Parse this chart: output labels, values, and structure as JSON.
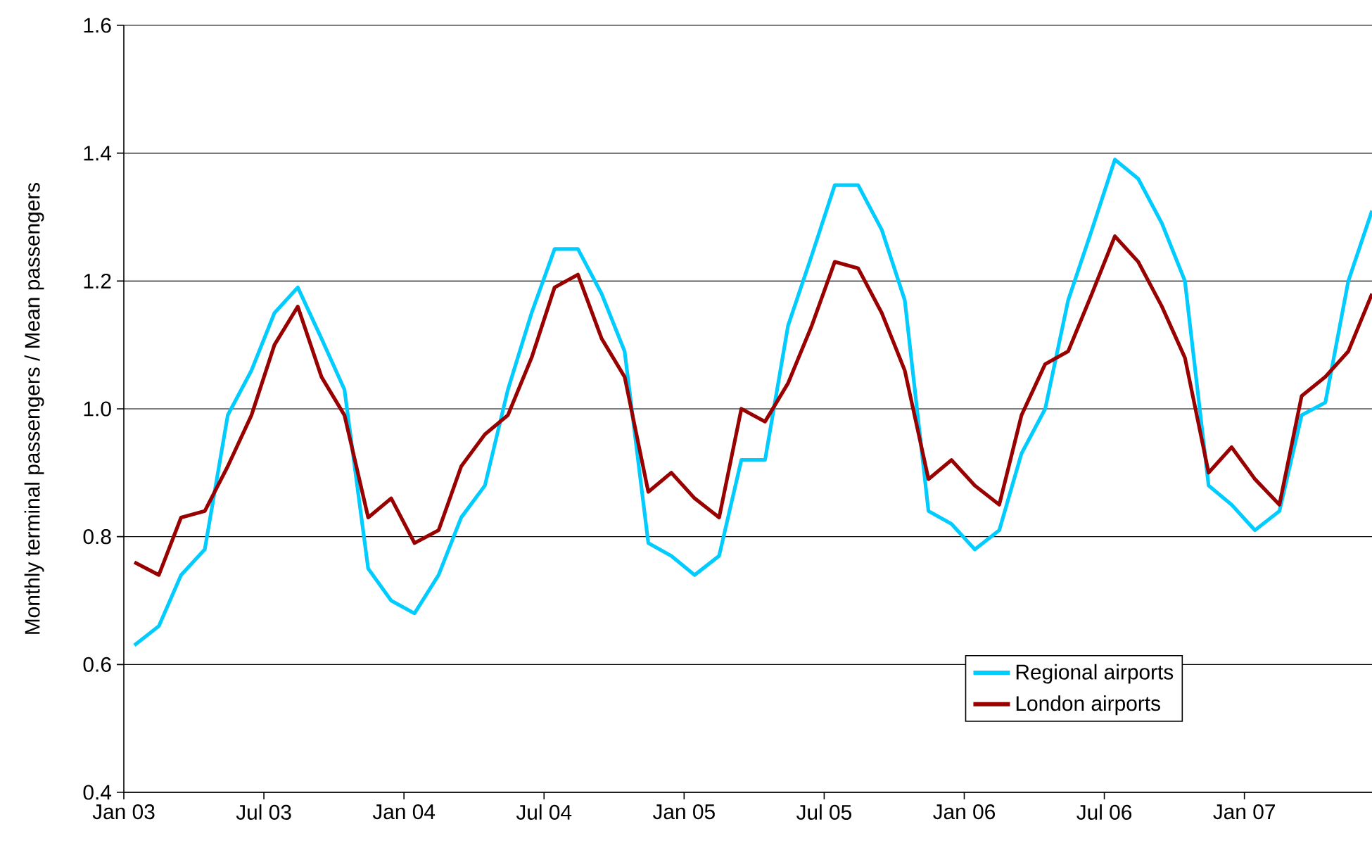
{
  "chart_data": {
    "type": "line",
    "ylabel": "Monthly terminal passengers / Mean passengers",
    "x": [
      "2003-01-15",
      "2003-02-15",
      "2003-03-15",
      "2003-04-15",
      "2003-05-15",
      "2003-06-15",
      "2003-07-15",
      "2003-08-15",
      "2003-09-15",
      "2003-10-15",
      "2003-11-15",
      "2003-12-15",
      "2004-01-15",
      "2004-02-15",
      "2004-03-15",
      "2004-04-15",
      "2004-05-15",
      "2004-06-15",
      "2004-07-15",
      "2004-08-15",
      "2004-09-15",
      "2004-10-15",
      "2004-11-15",
      "2004-12-15",
      "2005-01-15",
      "2005-02-15",
      "2005-03-15",
      "2005-04-15",
      "2005-05-15",
      "2005-06-15",
      "2005-07-15",
      "2005-08-15",
      "2005-09-15",
      "2005-10-15",
      "2005-11-15",
      "2005-12-15",
      "2006-01-15",
      "2006-02-15",
      "2006-03-15",
      "2006-04-15",
      "2006-05-15",
      "2006-06-15",
      "2006-07-15",
      "2006-08-15",
      "2006-09-15",
      "2006-10-15",
      "2006-11-15",
      "2006-12-15",
      "2007-01-15",
      "2007-02-15",
      "2007-03-15",
      "2007-04-15",
      "2007-05-15",
      "2007-06-15"
    ],
    "series": [
      {
        "name": "Regional airports",
        "color": "#00ccff",
        "values": [
          0.63,
          0.66,
          0.74,
          0.78,
          0.99,
          1.06,
          1.15,
          1.19,
          1.11,
          1.03,
          0.75,
          0.7,
          0.68,
          0.74,
          0.83,
          0.88,
          1.03,
          1.15,
          1.25,
          1.25,
          1.18,
          1.09,
          0.79,
          0.77,
          0.74,
          0.77,
          0.92,
          0.92,
          1.13,
          1.24,
          1.35,
          1.35,
          1.28,
          1.17,
          0.84,
          0.82,
          0.78,
          0.81,
          0.93,
          1.0,
          1.17,
          1.28,
          1.39,
          1.36,
          1.29,
          1.2,
          0.88,
          0.85,
          0.81,
          0.84,
          0.99,
          1.01,
          1.2,
          1.31
        ]
      },
      {
        "name": "London airports",
        "color": "#990000",
        "values": [
          0.76,
          0.74,
          0.83,
          0.84,
          0.91,
          0.99,
          1.1,
          1.16,
          1.05,
          0.99,
          0.83,
          0.86,
          0.79,
          0.81,
          0.91,
          0.96,
          0.99,
          1.08,
          1.19,
          1.21,
          1.11,
          1.05,
          0.87,
          0.9,
          0.86,
          0.83,
          1.0,
          0.98,
          1.04,
          1.13,
          1.23,
          1.22,
          1.15,
          1.06,
          0.89,
          0.92,
          0.88,
          0.85,
          0.99,
          1.07,
          1.09,
          1.18,
          1.27,
          1.23,
          1.16,
          1.08,
          0.9,
          0.94,
          0.89,
          0.85,
          1.02,
          1.05,
          1.09,
          1.18
        ]
      }
    ],
    "xlim": [
      "2003-01-01",
      "2007-06-15"
    ],
    "xticks": [
      {
        "value": "2003-01",
        "label": "Jan 03"
      },
      {
        "value": "2003-07",
        "label": "Jul 03"
      },
      {
        "value": "2004-01",
        "label": "Jan 04"
      },
      {
        "value": "2004-07",
        "label": "Jul 04"
      },
      {
        "value": "2005-01",
        "label": "Jan 05"
      },
      {
        "value": "2005-07",
        "label": "Jul 05"
      },
      {
        "value": "2006-01",
        "label": "Jan 06"
      },
      {
        "value": "2006-07",
        "label": "Jul 06"
      },
      {
        "value": "2007-01",
        "label": "Jan 07"
      }
    ],
    "ylim": [
      0.4,
      1.6
    ],
    "yticks": [
      {
        "value": 0.4,
        "label": "0.4"
      },
      {
        "value": 0.6,
        "label": "0.6"
      },
      {
        "value": 0.8,
        "label": "0.8"
      },
      {
        "value": 1.0,
        "label": "1.0"
      },
      {
        "value": 1.2,
        "label": "1.2"
      },
      {
        "value": 1.4,
        "label": "1.4"
      },
      {
        "value": 1.6,
        "label": "1.6"
      }
    ],
    "grid": "y",
    "legend": "bottom right",
    "marker": "none",
    "line_style": "solid"
  }
}
